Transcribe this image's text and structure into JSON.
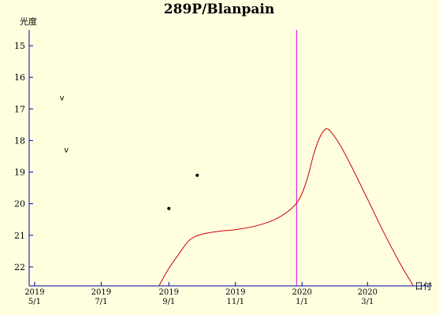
{
  "chart_data": {
    "type": "line",
    "title": "289P/Blanpain",
    "ylabel": "光度",
    "xlabel": "日付",
    "ylim": [
      22.6,
      14.5
    ],
    "y_inverted": true,
    "yticks": [
      15,
      16,
      17,
      18,
      19,
      20,
      21,
      22
    ],
    "xlim": [
      "2019-04-26",
      "2020-04-29"
    ],
    "xticks": [
      {
        "date": "2019-05-01",
        "year": "2019",
        "day": "5/1"
      },
      {
        "date": "2019-07-01",
        "year": "2019",
        "day": "7/1"
      },
      {
        "date": "2019-09-01",
        "year": "2019",
        "day": "9/1"
      },
      {
        "date": "2019-11-01",
        "year": "2019",
        "day": "11/1"
      },
      {
        "date": "2020-01-01",
        "year": "2020",
        "day": "1/1"
      },
      {
        "date": "2020-03-01",
        "year": "2020",
        "day": "3/1"
      }
    ],
    "current_date_marker": "2019-12-27",
    "colors": {
      "background": "#ffffe0",
      "axis": "#0000aa",
      "curve": "#cc0000",
      "marker_line": "#cc00cc",
      "points": "#000000"
    },
    "series": [
      {
        "kind": "predicted-curve",
        "points": [
          [
            "2019-08-23",
            22.6
          ],
          [
            "2019-08-31",
            22.1
          ],
          [
            "2019-09-10",
            21.6
          ],
          [
            "2019-09-20",
            21.15
          ],
          [
            "2019-10-01",
            20.97
          ],
          [
            "2019-10-15",
            20.88
          ],
          [
            "2019-11-01",
            20.82
          ],
          [
            "2019-11-20",
            20.7
          ],
          [
            "2019-12-10",
            20.45
          ],
          [
            "2019-12-27",
            19.98
          ],
          [
            "2020-01-05",
            19.3
          ],
          [
            "2020-01-12",
            18.4
          ],
          [
            "2020-01-18",
            17.85
          ],
          [
            "2020-01-23",
            17.63
          ],
          [
            "2020-01-28",
            17.75
          ],
          [
            "2020-02-05",
            18.15
          ],
          [
            "2020-02-15",
            18.8
          ],
          [
            "2020-03-01",
            19.85
          ],
          [
            "2020-03-15",
            20.85
          ],
          [
            "2020-03-31",
            21.9
          ],
          [
            "2020-04-12",
            22.6
          ]
        ]
      },
      {
        "kind": "observations",
        "points": [
          [
            "2019-09-01",
            20.15
          ],
          [
            "2019-09-27",
            19.1
          ]
        ]
      },
      {
        "kind": "upper-limits",
        "label": "v",
        "points": [
          [
            "2019-05-26",
            16.65
          ],
          [
            "2019-05-30",
            18.3
          ]
        ]
      }
    ]
  }
}
